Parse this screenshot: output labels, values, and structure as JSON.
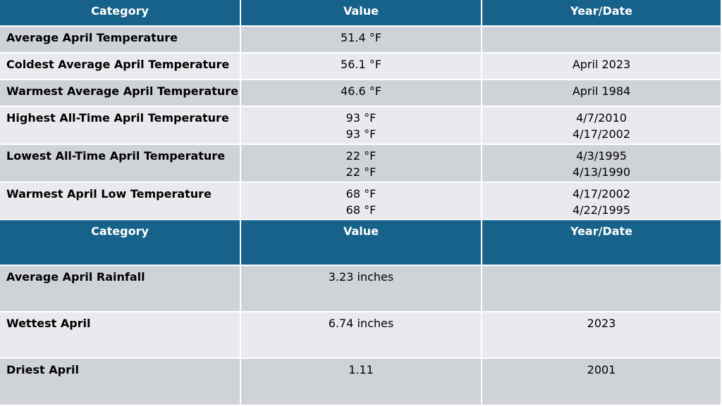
{
  "tables": [
    {
      "header": [
        "Category",
        "Value",
        "Year/Date"
      ],
      "rows": [
        {
          "category": "Average April Temperature",
          "value": [
            "51.4 °F"
          ],
          "date": []
        },
        {
          "category": "Coldest Average April Temperature",
          "value": [
            "56.1 °F"
          ],
          "date": [
            "April 2023"
          ]
        },
        {
          "category": "Warmest Average April Temperature",
          "value": [
            "46.6 °F"
          ],
          "date": [
            "April 1984"
          ]
        },
        {
          "category": "Highest All-Time April Temperature",
          "value": [
            "93 °F",
            "93 °F"
          ],
          "date": [
            "4/7/2010",
            "4/17/2002"
          ]
        },
        {
          "category": "Lowest All-Time April Temperature",
          "value": [
            "22 °F",
            "22 °F"
          ],
          "date": [
            "4/3/1995",
            "4/13/1990"
          ]
        },
        {
          "category": "Warmest April Low Temperature",
          "value": [
            "68 °F",
            "68 °F"
          ],
          "date": [
            "4/17/2002",
            "4/22/1995"
          ]
        }
      ]
    },
    {
      "header": [
        "Category",
        "Value",
        "Year/Date"
      ],
      "rows": [
        {
          "category": "Average April Rainfall",
          "value": [
            "3.23 inches"
          ],
          "date": []
        },
        {
          "category": "Wettest April",
          "value": [
            "6.74 inches"
          ],
          "date": [
            "2023"
          ]
        },
        {
          "category": "Driest April",
          "value": [
            "1.11"
          ],
          "date": [
            "2001"
          ]
        }
      ]
    }
  ]
}
